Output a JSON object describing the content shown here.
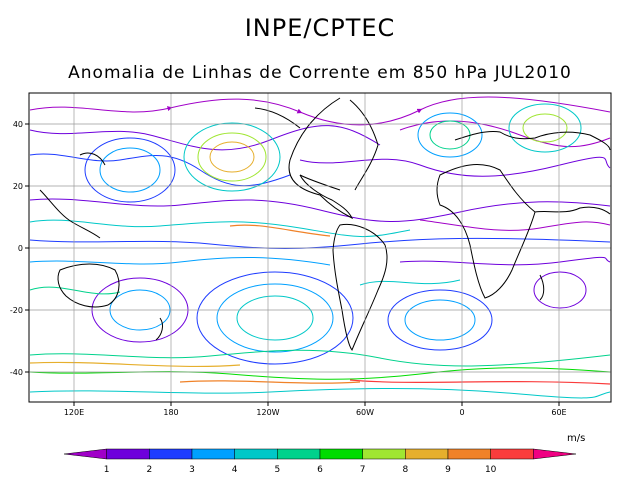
{
  "header": {
    "title": "INPE/CPTEC",
    "subtitle": "Anomalia de Linhas de Corrente em 850 hPa JUL2010"
  },
  "map": {
    "y_ticks": [
      "40",
      "20",
      "0",
      "-20",
      "-40"
    ],
    "x_ticks": [
      "120E",
      "180",
      "120W",
      "60W",
      "0",
      "60E"
    ]
  },
  "colorbar": {
    "units": "m/s",
    "labels": [
      "1",
      "2",
      "3",
      "4",
      "5",
      "6",
      "7",
      "8",
      "9",
      "10"
    ],
    "colors": [
      "#a000c8",
      "#6e00dc",
      "#1e3cff",
      "#00a0ff",
      "#00c8c8",
      "#00d28c",
      "#00dc00",
      "#a0e632",
      "#e6af2d",
      "#f08228",
      "#fa3c3c",
      "#f00082"
    ]
  }
}
